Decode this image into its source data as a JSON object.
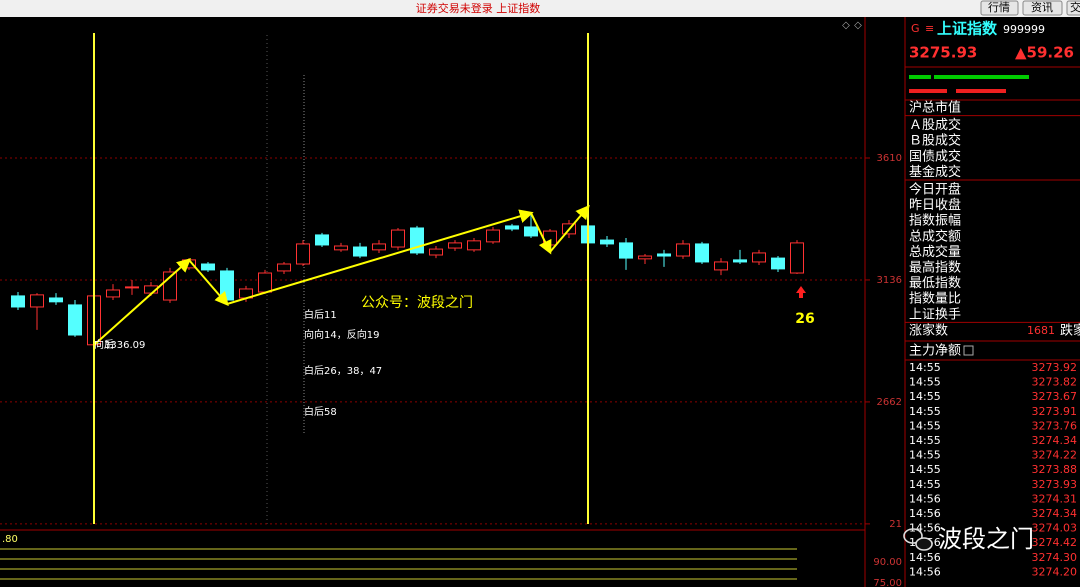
{
  "window": {
    "title": "证券交易未登录 上证指数",
    "buttons": [
      "行情",
      "资讯",
      "交"
    ]
  },
  "chart_data": {
    "type": "candlestick",
    "open": [
      3074,
      3031,
      3066,
      3039,
      2884,
      3070,
      3109,
      3085,
      3058,
      3183,
      3198,
      3171,
      3066,
      3089,
      3171,
      3198,
      3311,
      3253,
      3264,
      3253,
      3264,
      3338,
      3233,
      3260,
      3253,
      3284,
      3346,
      3342,
      3272,
      3315,
      3346,
      3291,
      3280,
      3218,
      3237,
      3229,
      3276,
      3175,
      3214,
      3206,
      3221,
      3163
    ],
    "high": [
      3089,
      3085,
      3085,
      3058,
      3082,
      3120,
      3136,
      3128,
      3183,
      3221,
      3206,
      3183,
      3113,
      3175,
      3206,
      3291,
      3319,
      3280,
      3280,
      3291,
      3338,
      3346,
      3268,
      3291,
      3299,
      3342,
      3354,
      3396,
      3334,
      3369,
      3361,
      3307,
      3299,
      3237,
      3253,
      3291,
      3284,
      3221,
      3253,
      3253,
      3229,
      3291
    ],
    "low": [
      3019,
      2942,
      3039,
      2915,
      2876,
      3058,
      3078,
      3074,
      3047,
      3175,
      3167,
      3039,
      3051,
      3082,
      3159,
      3190,
      3264,
      3245,
      3221,
      3241,
      3253,
      3233,
      3221,
      3249,
      3245,
      3276,
      3326,
      3299,
      3253,
      3299,
      3268,
      3264,
      3175,
      3198,
      3187,
      3218,
      3198,
      3155,
      3198,
      3194,
      3167,
      3159
    ],
    "close": [
      3031,
      3078,
      3051,
      2922,
      3074,
      3097,
      3109,
      3113,
      3167,
      3214,
      3175,
      3058,
      3101,
      3163,
      3198,
      3276,
      3272,
      3268,
      3229,
      3276,
      3330,
      3241,
      3256,
      3280,
      3288,
      3330,
      3334,
      3307,
      3326,
      3354,
      3280,
      3276,
      3221,
      3229,
      3229,
      3276,
      3206,
      3206,
      3206,
      3241,
      3179,
      3280
    ],
    "up_color": "#ff3232",
    "down_color": "#54ffff",
    "ylim": [
      2172,
      4088
    ],
    "yticks": [
      3610,
      3136,
      2662,
      {
        "value": 2188,
        "label": "21"
      }
    ],
    "annotations": [
      "向后",
      "3336.09",
      "白后11",
      "向向14，反向19",
      "白后26，38，47",
      "白后58",
      "公众号：波段之门",
      "26"
    ],
    "lower_panel": {
      "left_label": ".80",
      "right_labels": [
        "90.00",
        "75.00"
      ]
    }
  },
  "quote_panel": {
    "flag": "G",
    "menu_icon": "≡",
    "name": "上证指数",
    "code": "999999",
    "price": "3275.93",
    "change": "▲59.26",
    "fields": [
      [
        "沪总市值"
      ],
      [
        "Ａ股成交",
        "Ｂ股成交",
        "国债成交",
        "基金成交"
      ],
      [
        "今日开盘",
        "昨日收盘",
        "指数振幅",
        "总成交额",
        "总成交量",
        "最高指数",
        "最低指数",
        "指数量比",
        "上证换手"
      ]
    ],
    "advancers_label": "涨家数",
    "advancers": "1681",
    "decliners_label": "跌家",
    "main_net_label": "主力净额",
    "ticks": [
      [
        "14:55",
        "3273.92"
      ],
      [
        "14:55",
        "3273.82"
      ],
      [
        "14:55",
        "3273.67"
      ],
      [
        "14:55",
        "3273.91"
      ],
      [
        "14:55",
        "3273.76"
      ],
      [
        "14:55",
        "3274.34"
      ],
      [
        "14:55",
        "3274.22"
      ],
      [
        "14:55",
        "3273.88"
      ],
      [
        "14:55",
        "3273.93"
      ],
      [
        "14:56",
        "3274.31"
      ],
      [
        "14:56",
        "3274.34"
      ],
      [
        "14:56",
        "3274.03"
      ],
      [
        "14:56",
        "3274.42"
      ],
      [
        "14:56",
        "3274.30"
      ],
      [
        "14:56",
        "3274.20"
      ]
    ]
  },
  "watermark": "波段之门"
}
